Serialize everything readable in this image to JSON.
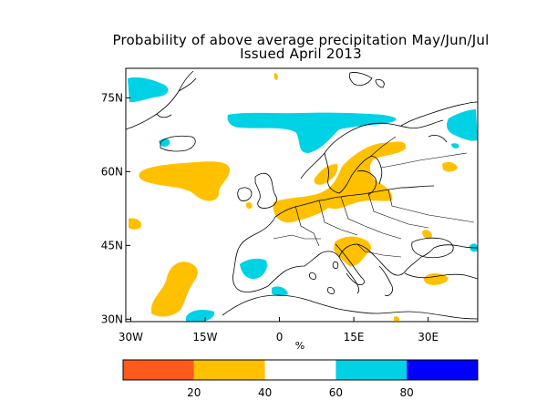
{
  "title": "Probability of above average precipitation May/Jun/Jul",
  "subtitle": "Issued April 2013",
  "map": {
    "lon_range": [
      -31,
      40
    ],
    "lat_range": [
      29.5,
      81
    ],
    "x_ticks": [
      {
        "value": -30,
        "label": "30W"
      },
      {
        "value": -15,
        "label": "15W"
      },
      {
        "value": 0,
        "label": "0"
      },
      {
        "value": 15,
        "label": "15E"
      },
      {
        "value": 30,
        "label": "30E"
      }
    ],
    "y_ticks": [
      {
        "value": 75,
        "label": "75N"
      },
      {
        "value": 60,
        "label": "60N"
      },
      {
        "value": 45,
        "label": "45N"
      },
      {
        "value": 30,
        "label": "30N"
      }
    ],
    "x_unit_label": "%"
  },
  "colorbar": {
    "bins": [
      {
        "range": [
          0,
          20
        ],
        "color": "#ff5a1e"
      },
      {
        "range": [
          20,
          40
        ],
        "color": "#ffc000"
      },
      {
        "range": [
          40,
          60
        ],
        "color": "#ffffff"
      },
      {
        "range": [
          60,
          80
        ],
        "color": "#00d2e6"
      },
      {
        "range": [
          80,
          100
        ],
        "color": "#0000ff"
      }
    ],
    "tick_labels": [
      "20",
      "40",
      "60",
      "80"
    ]
  },
  "colors": {
    "below": "#ffc000",
    "above": "#00d2e6",
    "coast": "#000000"
  }
}
